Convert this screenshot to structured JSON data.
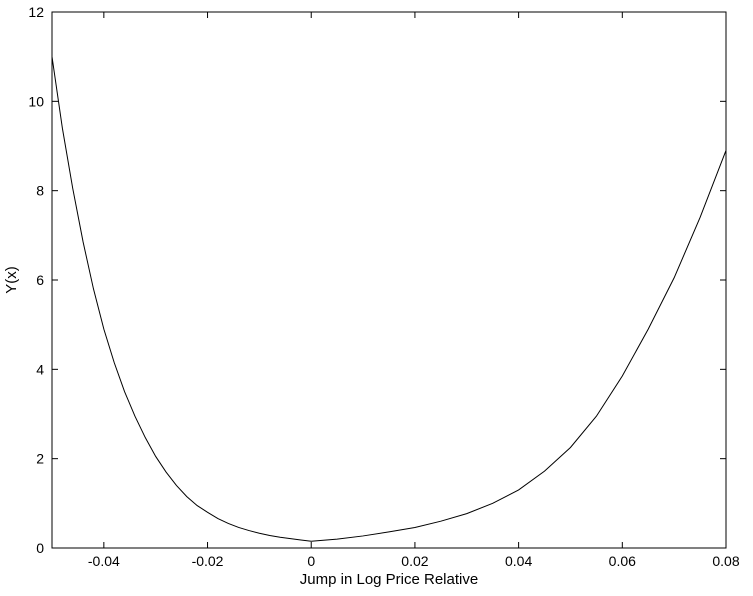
{
  "chart_data": {
    "type": "line",
    "title": "",
    "xlabel": "Jump in Log Price Relative",
    "ylabel": "Y(x)",
    "xlim": [
      -0.05,
      0.08
    ],
    "ylim": [
      0,
      12
    ],
    "x_ticks": [
      -0.04,
      -0.02,
      0,
      0.02,
      0.04,
      0.06,
      0.08
    ],
    "x_tick_labels": [
      "-0.04",
      "-0.02",
      "0",
      "0.02",
      "0.04",
      "0.06",
      "0.08"
    ],
    "y_ticks": [
      0,
      2,
      4,
      6,
      8,
      10,
      12
    ],
    "y_tick_labels": [
      "0",
      "2",
      "4",
      "6",
      "8",
      "10",
      "12"
    ],
    "grid": false,
    "legend": "none",
    "colors": {
      "line": "#000000",
      "axes": "#000000",
      "background": "#ffffff"
    },
    "series": [
      {
        "x": [
          -0.05,
          -0.048,
          -0.046,
          -0.044,
          -0.042,
          -0.04,
          -0.038,
          -0.036,
          -0.034,
          -0.032,
          -0.03,
          -0.028,
          -0.026,
          -0.024,
          -0.022,
          -0.02,
          -0.018,
          -0.016,
          -0.014,
          -0.012,
          -0.01,
          -0.008,
          -0.006,
          -0.004,
          -0.002,
          0,
          0.005,
          0.01,
          0.015,
          0.02,
          0.025,
          0.03,
          0.035,
          0.04,
          0.045,
          0.05,
          0.055,
          0.06,
          0.065,
          0.07,
          0.075,
          0.08
        ],
        "values": [
          11.0,
          9.4,
          8.05,
          6.85,
          5.8,
          4.9,
          4.15,
          3.5,
          2.95,
          2.47,
          2.05,
          1.7,
          1.4,
          1.15,
          0.95,
          0.8,
          0.66,
          0.55,
          0.46,
          0.39,
          0.33,
          0.28,
          0.24,
          0.21,
          0.18,
          0.15,
          0.2,
          0.27,
          0.36,
          0.46,
          0.6,
          0.77,
          1.0,
          1.3,
          1.72,
          2.25,
          2.95,
          3.85,
          4.9,
          6.05,
          7.4,
          8.9
        ]
      }
    ]
  }
}
